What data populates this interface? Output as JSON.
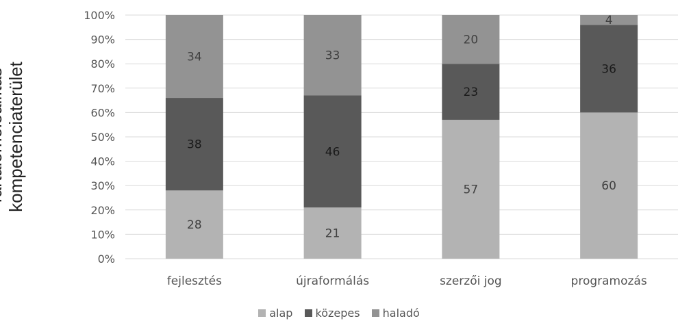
{
  "chart_data": {
    "type": "bar",
    "stacked": true,
    "percent": true,
    "title": "",
    "xlabel": "",
    "ylabel_lines": [
      "Tartalomelőállítás",
      "kompetenciaterület"
    ],
    "ylim": [
      0,
      100
    ],
    "yticks": [
      "0%",
      "10%",
      "20%",
      "30%",
      "40%",
      "50%",
      "60%",
      "70%",
      "80%",
      "90%",
      "100%"
    ],
    "categories": [
      "fejlesztés",
      "újraformálás",
      "szerzői jog",
      "programozás"
    ],
    "series": [
      {
        "name": "alap",
        "values": [
          28,
          21,
          57,
          60
        ],
        "color": "#b3b3b3"
      },
      {
        "name": "közepes",
        "values": [
          38,
          46,
          23,
          36
        ],
        "color": "#595959"
      },
      {
        "name": "haladó",
        "values": [
          34,
          33,
          20,
          4
        ],
        "color": "#939393"
      }
    ],
    "grid": true,
    "legend_position": "bottom"
  }
}
